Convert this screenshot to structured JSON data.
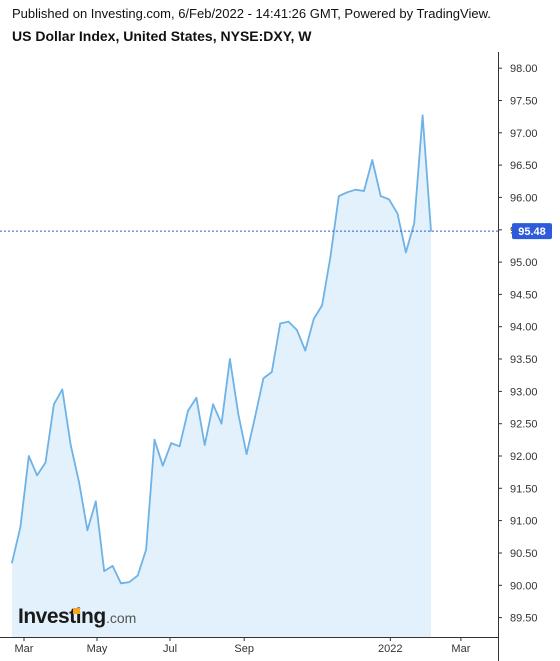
{
  "header": {
    "publish_line": "Published on Investing.com, 6/Feb/2022 - 14:41:26 GMT, Powered by TradingView.",
    "instrument_line": "US Dollar Index, United States, NYSE:DXY, W"
  },
  "logo": {
    "brand": "Investing",
    "suffix": ".com"
  },
  "colors": {
    "line": "#6fb2e6",
    "area": "#e2f1fb",
    "last_price_line": "#2e5bd9",
    "last_price_badge": "#2e5bd9",
    "axis": "#333333",
    "grid": "#ffffff"
  },
  "chart_data": {
    "type": "area",
    "title": "US Dollar Index, United States, NYSE:DXY, W",
    "xlabel": "",
    "ylabel": "",
    "x_tick_labels": [
      "Mar",
      "May",
      "Jul",
      "Sep",
      "2022",
      "Mar"
    ],
    "y_tick_labels": [
      "89.50",
      "90.00",
      "90.50",
      "91.00",
      "91.50",
      "92.00",
      "92.50",
      "93.00",
      "93.50",
      "94.00",
      "94.50",
      "95.00",
      "95.50",
      "96.00",
      "96.50",
      "97.00",
      "97.50",
      "98.00"
    ],
    "ylim": [
      89.2,
      98.25
    ],
    "last_price": "95.48",
    "last_price_value": 95.48,
    "grid": false,
    "legend": "none",
    "x": [
      "2021-02-19",
      "2021-02-26",
      "2021-03-05",
      "2021-03-12",
      "2021-03-19",
      "2021-03-26",
      "2021-04-02",
      "2021-04-09",
      "2021-04-16",
      "2021-04-23",
      "2021-04-30",
      "2021-05-07",
      "2021-05-14",
      "2021-05-21",
      "2021-05-28",
      "2021-06-04",
      "2021-06-11",
      "2021-06-18",
      "2021-06-25",
      "2021-07-02",
      "2021-07-09",
      "2021-07-16",
      "2021-07-23",
      "2021-07-30",
      "2021-08-06",
      "2021-08-13",
      "2021-08-20",
      "2021-08-27",
      "2021-09-03",
      "2021-09-10",
      "2021-09-17",
      "2021-09-24",
      "2021-10-01",
      "2021-10-08",
      "2021-10-15",
      "2021-10-22",
      "2021-10-29",
      "2021-11-05",
      "2021-11-12",
      "2021-11-19",
      "2021-11-26",
      "2021-12-03",
      "2021-12-10",
      "2021-12-17",
      "2021-12-24",
      "2021-12-31",
      "2022-01-07",
      "2022-01-14",
      "2022-01-21",
      "2022-01-28",
      "2022-02-04"
    ],
    "series": [
      {
        "values": [
          90.35,
          90.9,
          92.0,
          91.7,
          91.9,
          92.8,
          93.03,
          92.17,
          91.6,
          90.85,
          91.3,
          90.22,
          90.3,
          90.03,
          90.05,
          90.15,
          90.55,
          92.25,
          91.85,
          92.2,
          92.15,
          92.7,
          92.9,
          92.17,
          92.8,
          92.5,
          93.5,
          92.65,
          92.03,
          92.6,
          93.2,
          93.3,
          94.05,
          94.08,
          93.95,
          93.63,
          94.12,
          94.33,
          95.08,
          96.02,
          96.08,
          96.12,
          96.1,
          96.58,
          96.02,
          95.97,
          95.75,
          95.15,
          95.6,
          97.27,
          95.48
        ]
      }
    ]
  }
}
